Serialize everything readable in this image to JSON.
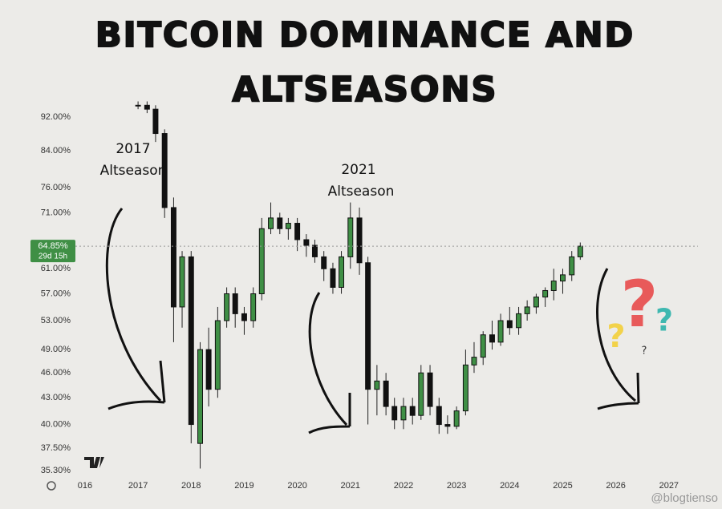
{
  "chart_data": {
    "type": "candlestick",
    "title": "BITCOIN DOMINANCE AND ALTSEASONS",
    "annotations": [
      {
        "lines": [
          "2017",
          "Altseason"
        ]
      },
      {
        "lines": [
          "2021",
          "Altseason"
        ]
      }
    ],
    "question_marks": [
      "?",
      "?",
      "?",
      "?"
    ],
    "watermark": "@blogtienso",
    "log_scale": true,
    "up_color": "#3f8f45",
    "down_color": "#111111",
    "xlim": [
      2015.85,
      2028.0
    ],
    "xticks": [
      {
        "value": 2016,
        "label": "016"
      },
      2017,
      2018,
      2019,
      2020,
      2021,
      2022,
      2023,
      2024,
      2025,
      2026,
      2027
    ],
    "ylim": [
      34.7,
      99.5
    ],
    "yticks": [
      {
        "value": 35.3,
        "label": "35.30%"
      },
      {
        "value": 37.5,
        "label": "37.50%"
      },
      {
        "value": 40,
        "label": "40.00%"
      },
      {
        "value": 43,
        "label": "43.00%"
      },
      {
        "value": 46,
        "label": "46.00%"
      },
      {
        "value": 49,
        "label": "49.00%"
      },
      {
        "value": 53,
        "label": "53.00%"
      },
      {
        "value": 57,
        "label": "57.00%"
      },
      {
        "value": 61,
        "label": "61.00%"
      },
      {
        "value": 71,
        "label": "71.00%"
      },
      {
        "value": 76,
        "label": "76.00%"
      },
      {
        "value": 84,
        "label": "84.00%"
      },
      {
        "value": 92,
        "label": "92.00%"
      }
    ],
    "last_price": {
      "value": 64.85,
      "label": "64.85%",
      "countdown": "29d 15h"
    },
    "x": [
      2017.0,
      2017.17,
      2017.33,
      2017.5,
      2017.67,
      2017.83,
      2018.0,
      2018.17,
      2018.33,
      2018.5,
      2018.67,
      2018.83,
      2019.0,
      2019.17,
      2019.33,
      2019.5,
      2019.67,
      2019.83,
      2020.0,
      2020.17,
      2020.33,
      2020.5,
      2020.67,
      2020.83,
      2021.0,
      2021.17,
      2021.33,
      2021.5,
      2021.67,
      2021.83,
      2022.0,
      2022.17,
      2022.33,
      2022.5,
      2022.67,
      2022.83,
      2023.0,
      2023.17,
      2023.33,
      2023.5,
      2023.67,
      2023.83,
      2024.0,
      2024.17,
      2024.33,
      2024.5,
      2024.67,
      2024.83,
      2025.0,
      2025.17,
      2025.33
    ],
    "open": [
      95,
      95,
      94,
      88,
      72,
      55,
      63,
      38,
      49,
      44,
      53,
      57,
      54,
      53,
      57,
      68,
      70,
      68,
      69,
      66,
      65,
      63,
      61,
      58,
      63,
      70,
      62,
      44,
      45,
      42,
      40.5,
      42,
      41,
      46,
      42,
      40,
      39.8,
      41.5,
      47,
      48,
      51,
      50,
      53,
      52,
      54,
      55,
      56.5,
      57.5,
      59,
      60,
      63
    ],
    "high": [
      96,
      96,
      95,
      89,
      74,
      64,
      64,
      50,
      52,
      55,
      58,
      58,
      55,
      58,
      70,
      73,
      71,
      70,
      70,
      67,
      66,
      64,
      62,
      64,
      73,
      72,
      63,
      47,
      46,
      43,
      43,
      43,
      47,
      47,
      43,
      41,
      42,
      49,
      50,
      51.5,
      53,
      54,
      55,
      55,
      56,
      57,
      58,
      61,
      61,
      64,
      65.5
    ],
    "low": [
      94,
      93,
      86,
      70,
      50,
      52,
      38,
      35.5,
      42,
      43,
      52,
      52,
      51,
      52,
      56,
      67,
      67,
      66,
      64,
      63,
      62,
      59,
      57,
      57,
      61,
      60,
      40,
      41,
      41,
      39.5,
      39.5,
      40,
      40.5,
      41,
      39,
      39,
      39.5,
      41,
      46,
      47,
      49,
      49.5,
      51,
      51,
      53,
      54,
      55,
      56,
      57,
      59,
      62.5
    ],
    "close": [
      95,
      94,
      88,
      72,
      55,
      63,
      40,
      49,
      44,
      53,
      57,
      54,
      53,
      57,
      68,
      70,
      68,
      69,
      66,
      65,
      63,
      61,
      58,
      63,
      70,
      62,
      44,
      45,
      42,
      40.5,
      42,
      41,
      46,
      42,
      40,
      39.8,
      41.5,
      47,
      48,
      51,
      50,
      53,
      52,
      54,
      55,
      56.5,
      57.5,
      59,
      60,
      63,
      64.85
    ]
  }
}
